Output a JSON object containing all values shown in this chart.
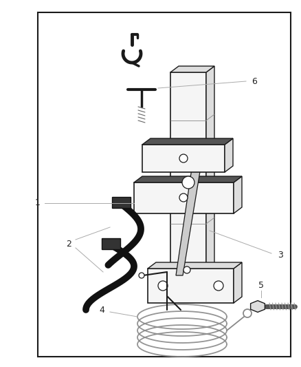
{
  "background_color": "#ffffff",
  "border_color": "#1a1a1a",
  "border_lw": 1.5,
  "line_color": "#aaaaaa",
  "part_edge": "#1a1a1a",
  "part_face_light": "#f5f5f5",
  "part_face_mid": "#dddddd",
  "part_face_dark": "#bbbbbb",
  "strap_color": "#111111",
  "label_fontsize": 9
}
